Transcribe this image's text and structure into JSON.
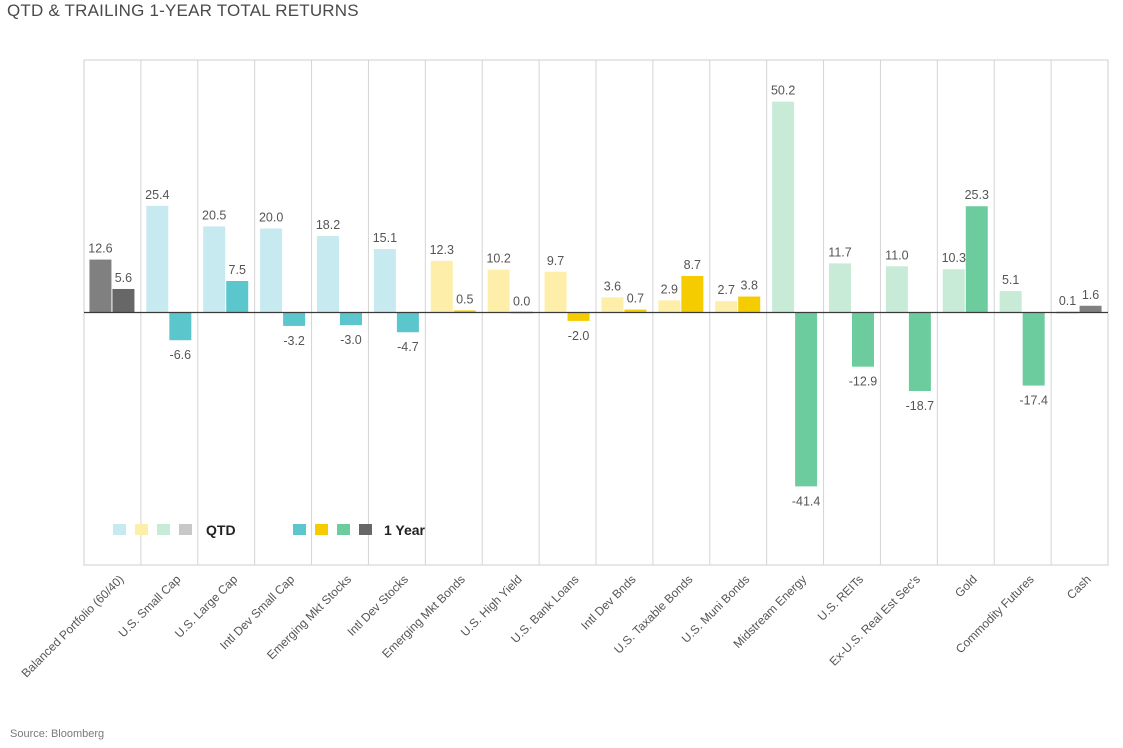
{
  "chart_data": {
    "type": "bar",
    "title": "QTD & TRAILING 1-YEAR TOTAL RETURNS",
    "categories": [
      "Balanced Portfolio (60/40)",
      "U.S. Small Cap",
      "U.S. Large Cap",
      "Intl Dev Small Cap",
      "Emerging Mkt Stocks",
      "Intl Dev Stocks",
      "Emerging Mkt Bonds",
      "U.S. High Yield",
      "U.S. Bank Loans",
      "Intl Dev Bnds",
      "U.S. Taxable Bonds",
      "U.S. Muni Bonds",
      "Midstream Energy",
      "U.S. REITs",
      "Ex-U.S. Real Est Sec's",
      "Gold",
      "Commodity Futures",
      "Cash"
    ],
    "series": [
      {
        "name": "QTD",
        "values": [
          12.6,
          25.4,
          20.5,
          20.0,
          18.2,
          15.1,
          12.3,
          10.2,
          9.7,
          3.6,
          2.9,
          2.7,
          50.2,
          11.7,
          11.0,
          10.3,
          5.1,
          0.1
        ],
        "labels": [
          "12.6",
          "25.4",
          "20.5",
          "20.0",
          "18.2",
          "15.1",
          "12.3",
          "10.2",
          "9.7",
          "3.6",
          "2.9",
          "2.7",
          "50.2",
          "11.7",
          "11.0",
          "10.3",
          "5.1",
          "0.1"
        ]
      },
      {
        "name": "1 Year",
        "values": [
          5.6,
          -6.6,
          7.5,
          -3.2,
          -3.0,
          -4.7,
          0.5,
          0.0,
          -2.0,
          0.7,
          8.7,
          3.8,
          -41.4,
          -12.9,
          -18.7,
          25.3,
          -17.4,
          1.6
        ],
        "labels": [
          "5.6",
          "-6.6",
          "7.5",
          "-3.2",
          "-3.0",
          "-4.7",
          "0.5",
          "0.0",
          "-2.0",
          "0.7",
          "8.7",
          "3.8",
          "-41.4",
          "-12.9",
          "-18.7",
          "25.3",
          "-17.4",
          "1.6"
        ]
      }
    ],
    "category_groups": [
      "balanced",
      "equity",
      "equity",
      "equity",
      "equity",
      "equity",
      "credit",
      "credit",
      "credit",
      "bonds",
      "bonds",
      "bonds",
      "real",
      "real",
      "real",
      "real",
      "real",
      "cash"
    ],
    "colors": {
      "balanced": {
        "qtd": "#808080",
        "year": "#676767"
      },
      "equity": {
        "qtd": "#c6eaf0",
        "year": "#5cc6cd"
      },
      "credit": {
        "qtd": "#fdeeaa",
        "year": "#f5cc00"
      },
      "bonds": {
        "qtd": "#fdeeaa",
        "year": "#f5cc00"
      },
      "real": {
        "qtd": "#c8ebd8",
        "year": "#6dcc9d"
      },
      "cash": {
        "qtd": "#c8c8c8",
        "year": "#808080"
      }
    },
    "ylim": [
      -60.0,
      62.5
    ],
    "xlabel": "",
    "ylabel": "",
    "grid": "vertical",
    "legend": {
      "placement": "lower-left inside",
      "qtd_label": "QTD",
      "year_label": "1 Year",
      "qtd_swatches": [
        "#c6eaf0",
        "#fdeeaa",
        "#c8ebd8",
        "#c8c8c8"
      ],
      "year_swatches": [
        "#5cc6cd",
        "#f5cc00",
        "#6dcc9d",
        "#676767"
      ]
    },
    "source": "Source: Bloomberg"
  }
}
